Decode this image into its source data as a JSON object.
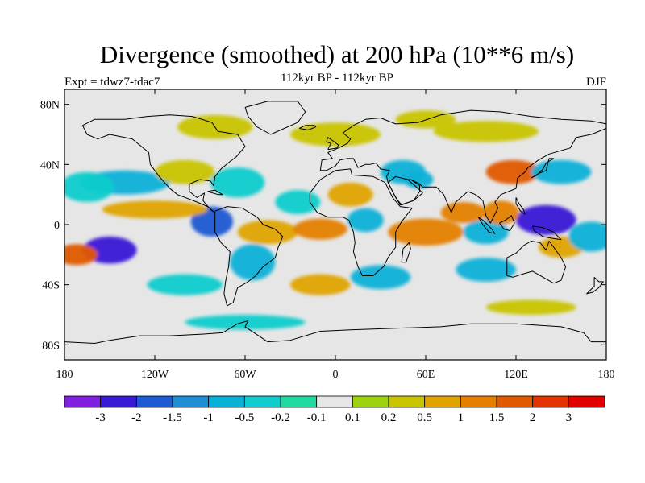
{
  "header": {
    "title": "Divergence (smoothed) at 200 hPa (10**6 m/s)",
    "experiment": "Expt = tdwz7-tdac7",
    "period": "112kyr BP - 112kyr BP",
    "season": "DJF"
  },
  "map": {
    "projection": "cylindrical-equidistant",
    "lon_range": [
      -180,
      180
    ],
    "lat_range": [
      -90,
      90
    ],
    "x_ticks": [
      {
        "lon": -180,
        "label": "180"
      },
      {
        "lon": -120,
        "label": "120W"
      },
      {
        "lon": -60,
        "label": "60W"
      },
      {
        "lon": 0,
        "label": "0"
      },
      {
        "lon": 60,
        "label": "60E"
      },
      {
        "lon": 120,
        "label": "120E"
      },
      {
        "lon": 180,
        "label": "180"
      }
    ],
    "y_ticks": [
      {
        "lat": 80,
        "label": "80N"
      },
      {
        "lat": 40,
        "label": "40N"
      },
      {
        "lat": 0,
        "label": "0"
      },
      {
        "lat": -40,
        "label": "40S"
      },
      {
        "lat": -80,
        "label": "80S"
      }
    ],
    "background_color": "#e6e6e6",
    "coastline_color": "#000000"
  },
  "colorbar": {
    "labels": [
      "-3",
      "-2",
      "-1.5",
      "-1",
      "-0.5",
      "-0.2",
      "-0.1",
      "0.1",
      "0.2",
      "0.5",
      "1",
      "1.5",
      "2",
      "3"
    ],
    "colors": [
      "#7f1fe0",
      "#3a19d6",
      "#1f5ad2",
      "#1f8ed6",
      "#08b1d8",
      "#11cccc",
      "#1fd9a0",
      "#e6e6e6",
      "#9bd40f",
      "#c8c400",
      "#dfa400",
      "#e47f00",
      "#e05800",
      "#e23300",
      "#e00000"
    ]
  },
  "chart_data": {
    "type": "heatmap",
    "title": "Divergence (smoothed) at 200 hPa (10**6 m/s)",
    "levels": [
      -3,
      -2,
      -1.5,
      -1,
      -0.5,
      -0.2,
      -0.1,
      0.1,
      0.2,
      0.5,
      1,
      1.5,
      2,
      3
    ],
    "features": [
      {
        "lon": -150,
        "lat": -17,
        "value": -2.5,
        "rlon": 18,
        "rlat": 9
      },
      {
        "lon": -172,
        "lat": -20,
        "value": 1.5,
        "rlon": 14,
        "rlat": 7
      },
      {
        "lon": -82,
        "lat": 2,
        "value": -2,
        "rlon": 14,
        "rlat": 10
      },
      {
        "lon": -120,
        "lat": 10,
        "value": 0.8,
        "rlon": 35,
        "rlat": 6
      },
      {
        "lon": -140,
        "lat": 28,
        "value": -0.6,
        "rlon": 30,
        "rlat": 8
      },
      {
        "lon": -165,
        "lat": 25,
        "value": -0.4,
        "rlon": 18,
        "rlat": 10
      },
      {
        "lon": -100,
        "lat": 35,
        "value": 0.3,
        "rlon": 20,
        "rlat": 8
      },
      {
        "lon": -65,
        "lat": 28,
        "value": -0.5,
        "rlon": 18,
        "rlat": 10
      },
      {
        "lon": -45,
        "lat": -5,
        "value": 0.6,
        "rlon": 20,
        "rlat": 8
      },
      {
        "lon": -55,
        "lat": -25,
        "value": -0.6,
        "rlon": 15,
        "rlat": 12
      },
      {
        "lon": -10,
        "lat": -3,
        "value": 1,
        "rlon": 18,
        "rlat": 7
      },
      {
        "lon": -25,
        "lat": 15,
        "value": -0.5,
        "rlon": 15,
        "rlat": 8
      },
      {
        "lon": 10,
        "lat": 20,
        "value": 0.5,
        "rlon": 15,
        "rlat": 8
      },
      {
        "lon": 20,
        "lat": 3,
        "value": -0.8,
        "rlon": 12,
        "rlat": 8
      },
      {
        "lon": 45,
        "lat": 35,
        "value": -0.6,
        "rlon": 15,
        "rlat": 8
      },
      {
        "lon": 55,
        "lat": 30,
        "value": -0.8,
        "rlon": 10,
        "rlat": 6
      },
      {
        "lon": 60,
        "lat": -5,
        "value": 1.2,
        "rlon": 25,
        "rlat": 9
      },
      {
        "lon": 85,
        "lat": 8,
        "value": 1.3,
        "rlon": 15,
        "rlat": 7
      },
      {
        "lon": 100,
        "lat": -5,
        "value": -0.8,
        "rlon": 15,
        "rlat": 8
      },
      {
        "lon": 118,
        "lat": 35,
        "value": 1.5,
        "rlon": 18,
        "rlat": 8
      },
      {
        "lon": 140,
        "lat": 3,
        "value": -2.5,
        "rlon": 20,
        "rlat": 10
      },
      {
        "lon": 150,
        "lat": 35,
        "value": -0.6,
        "rlon": 20,
        "rlat": 8
      },
      {
        "lon": 110,
        "lat": 8,
        "value": 1,
        "rlon": 12,
        "rlat": 8
      },
      {
        "lon": 150,
        "lat": -15,
        "value": 0.8,
        "rlon": 15,
        "rlat": 7
      },
      {
        "lon": 170,
        "lat": -8,
        "value": -0.6,
        "rlon": 15,
        "rlat": 10
      },
      {
        "lon": 100,
        "lat": -30,
        "value": -0.7,
        "rlon": 20,
        "rlat": 8
      },
      {
        "lon": 30,
        "lat": -35,
        "value": -0.6,
        "rlon": 20,
        "rlat": 8
      },
      {
        "lon": -10,
        "lat": -40,
        "value": 0.5,
        "rlon": 20,
        "rlat": 7
      },
      {
        "lon": -100,
        "lat": -40,
        "value": -0.5,
        "rlon": 25,
        "rlat": 7
      },
      {
        "lon": 130,
        "lat": -55,
        "value": 0.3,
        "rlon": 30,
        "rlat": 5
      },
      {
        "lon": -60,
        "lat": -65,
        "value": -0.4,
        "rlon": 40,
        "rlat": 5
      },
      {
        "lon": 0,
        "lat": 60,
        "value": 0.3,
        "rlon": 30,
        "rlat": 8
      },
      {
        "lon": 100,
        "lat": 62,
        "value": 0.25,
        "rlon": 35,
        "rlat": 7
      },
      {
        "lon": -80,
        "lat": 65,
        "value": 0.25,
        "rlon": 25,
        "rlat": 8
      },
      {
        "lon": 60,
        "lat": 70,
        "value": 0.3,
        "rlon": 20,
        "rlat": 6
      }
    ]
  }
}
